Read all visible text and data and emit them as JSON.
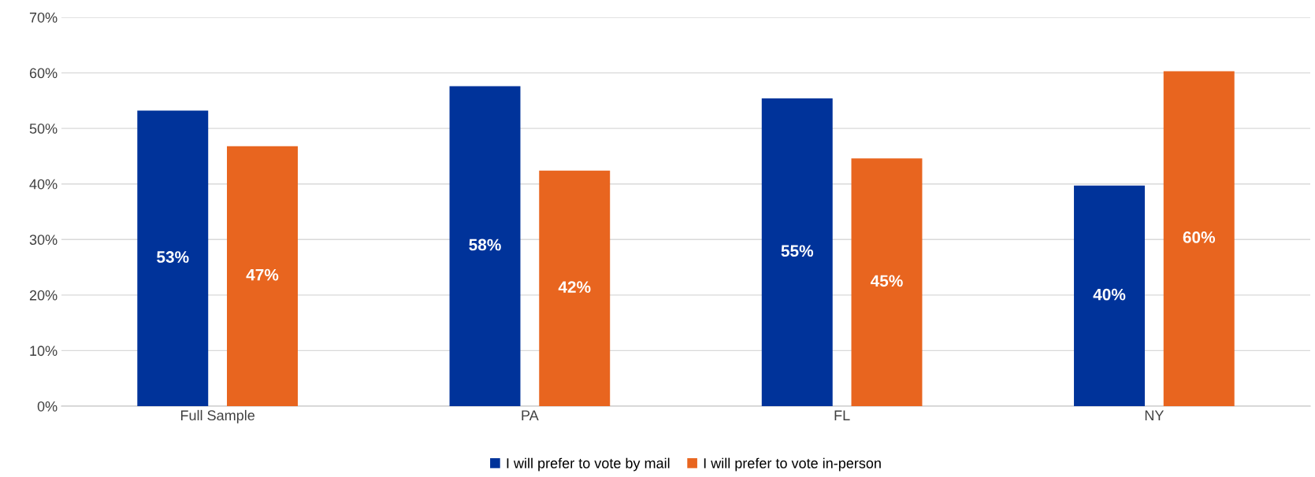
{
  "chart_data": {
    "type": "bar",
    "categories": [
      "Full Sample",
      "PA",
      "FL",
      "NY"
    ],
    "series": [
      {
        "name": "I will prefer to vote by mail",
        "color": "#00339a",
        "values": [
          53.2,
          57.6,
          55.4,
          39.7
        ],
        "value_labels": [
          "53%",
          "58%",
          "55%",
          "40%"
        ]
      },
      {
        "name": "I will prefer to vote in-person",
        "color": "#e8651f",
        "values": [
          46.8,
          42.4,
          44.6,
          60.3
        ],
        "value_labels": [
          "47%",
          "42%",
          "45%",
          "60%"
        ]
      }
    ],
    "ylim": [
      0,
      70
    ],
    "yticks": [
      {
        "value": 0,
        "label": "0%"
      },
      {
        "value": 10,
        "label": "10%"
      },
      {
        "value": 20,
        "label": "20%"
      },
      {
        "value": 30,
        "label": "30%"
      },
      {
        "value": 40,
        "label": "40%"
      },
      {
        "value": 50,
        "label": "50%"
      },
      {
        "value": 60,
        "label": "60%"
      },
      {
        "value": 70,
        "label": "70%"
      }
    ],
    "grid": "y",
    "legend": "bottom"
  }
}
